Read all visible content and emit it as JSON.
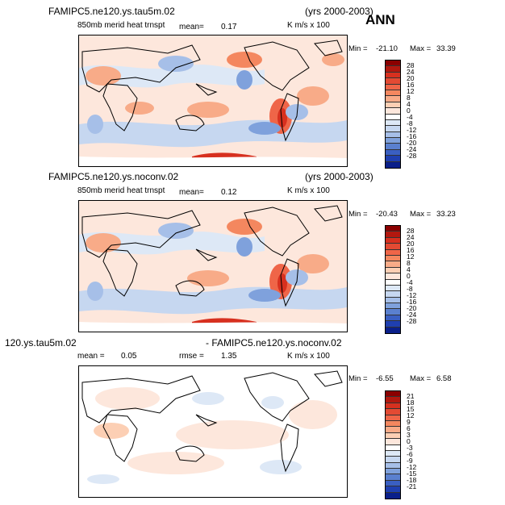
{
  "panels": [
    {
      "title": "FAMIPC5.ne120.ys.tau5m.02",
      "years": "(yrs 2000-2003)",
      "variable": "850mb merid heat trnspt",
      "mean_label": "mean=",
      "mean_value": "0.17",
      "units": "K m/s x 100",
      "min_label": "Min =",
      "min_value": "-21.10",
      "max_label": "Max =",
      "max_value": "33.39"
    },
    {
      "title": "FAMIPC5.ne120.ys.noconv.02",
      "years": "(yrs 2000-2003)",
      "variable": "850mb merid heat trnspt",
      "mean_label": "mean=",
      "mean_value": "0.12",
      "units": "K m/s x 100",
      "min_label": "Min =",
      "min_value": "-20.43",
      "max_label": "Max =",
      "max_value": "33.23"
    },
    {
      "title_left": "120.ys.tau5m.02",
      "title_right": "- FAMIPC5.ne120.ys.noconv.02",
      "mean_label": "mean =",
      "mean_value": "0.05",
      "rmse_label": "rmse =",
      "rmse_value": "1.35",
      "units": "K m/s x 100",
      "min_label": "Min =",
      "min_value": "-6.55",
      "max_label": "Max =",
      "max_value": "6.58"
    }
  ],
  "season": "ANN",
  "colorbars": [
    {
      "labels": [
        "28",
        "24",
        "20",
        "16",
        "12",
        "8",
        "4",
        "0",
        "-4",
        "-8",
        "-12",
        "-16",
        "-20",
        "-24",
        "-28"
      ],
      "colors": [
        "#8b0000",
        "#b2180f",
        "#d7301f",
        "#e34a33",
        "#ef6548",
        "#f4875f",
        "#f8ab88",
        "#fccfb4",
        "#fde7dc",
        "#ffffff",
        "#dde8f6",
        "#c6d7f0",
        "#a6bfe8",
        "#7fa1dc",
        "#5a80cf",
        "#3a5fc2",
        "#1f3fb0",
        "#0a1f8a"
      ]
    },
    {
      "labels": [
        "28",
        "24",
        "20",
        "16",
        "12",
        "8",
        "4",
        "0",
        "-4",
        "-8",
        "-12",
        "-16",
        "-20",
        "-24",
        "-28"
      ],
      "colors": [
        "#8b0000",
        "#b2180f",
        "#d7301f",
        "#e34a33",
        "#ef6548",
        "#f4875f",
        "#f8ab88",
        "#fccfb4",
        "#fde7dc",
        "#ffffff",
        "#dde8f6",
        "#c6d7f0",
        "#a6bfe8",
        "#7fa1dc",
        "#5a80cf",
        "#3a5fc2",
        "#1f3fb0",
        "#0a1f8a"
      ]
    },
    {
      "labels": [
        "21",
        "18",
        "15",
        "12",
        "9",
        "6",
        "3",
        "0",
        "-3",
        "-6",
        "-9",
        "-12",
        "-15",
        "-18",
        "-21"
      ],
      "colors": [
        "#8b0000",
        "#b2180f",
        "#d7301f",
        "#e34a33",
        "#ef6548",
        "#f4875f",
        "#f8ab88",
        "#fccfb4",
        "#fde7dc",
        "#ffffff",
        "#dde8f6",
        "#c6d7f0",
        "#a6bfe8",
        "#7fa1dc",
        "#5a80cf",
        "#3a5fc2",
        "#1f3fb0",
        "#0a1f8a"
      ]
    }
  ],
  "chart_data": [
    {
      "type": "heatmap",
      "title": "FAMIPC5.ne120.ys.tau5m.02",
      "subtitle": "850mb merid heat trnspt",
      "units": "K m/s x 100",
      "mean": 0.17,
      "min": -21.1,
      "max": 33.39,
      "contour_levels": [
        -28,
        -24,
        -20,
        -16,
        -12,
        -8,
        -4,
        0,
        4,
        8,
        12,
        16,
        20,
        24,
        28
      ]
    },
    {
      "type": "heatmap",
      "title": "FAMIPC5.ne120.ys.noconv.02",
      "subtitle": "850mb merid heat trnspt",
      "units": "K m/s x 100",
      "mean": 0.12,
      "min": -20.43,
      "max": 33.23,
      "contour_levels": [
        -28,
        -24,
        -20,
        -16,
        -12,
        -8,
        -4,
        0,
        4,
        8,
        12,
        16,
        20,
        24,
        28
      ]
    },
    {
      "type": "heatmap",
      "title": "- FAMIPC5.ne120.ys.noconv.02",
      "units": "K m/s x 100",
      "mean": 0.05,
      "rmse": 1.35,
      "min": -6.55,
      "max": 6.58,
      "contour_levels": [
        -21,
        -18,
        -15,
        -12,
        -9,
        -6,
        -3,
        0,
        3,
        6,
        9,
        12,
        15,
        18,
        21
      ]
    }
  ]
}
